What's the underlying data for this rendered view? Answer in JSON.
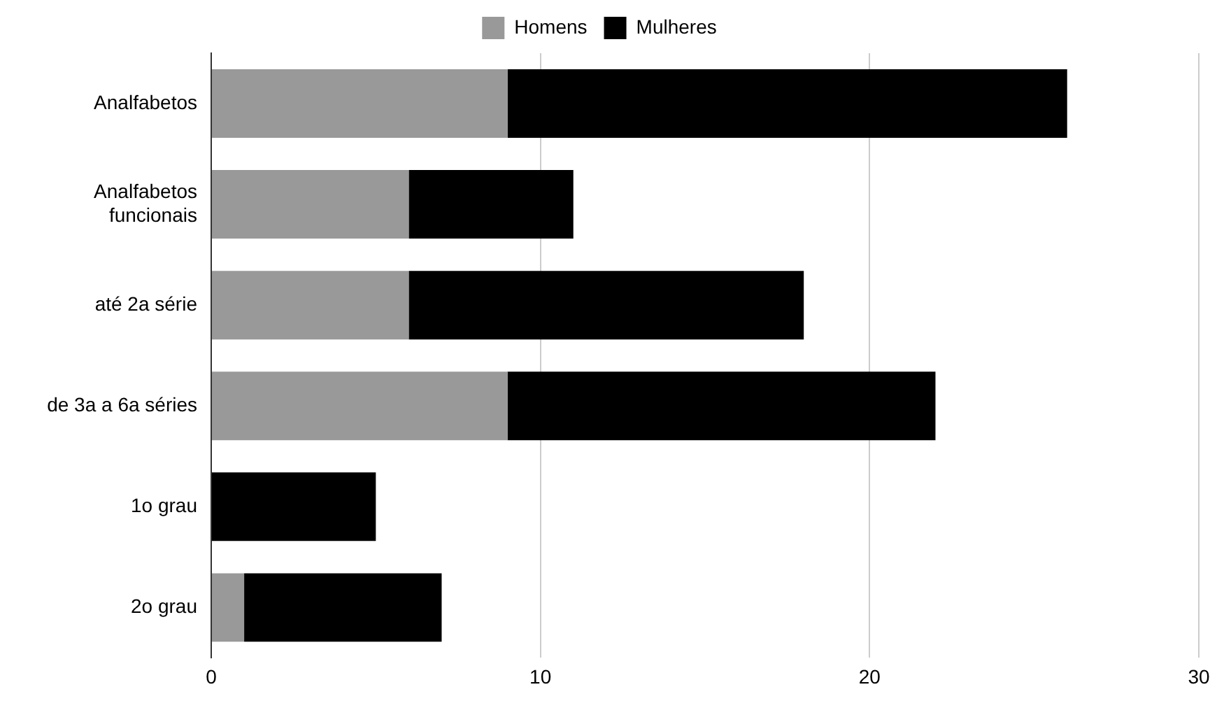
{
  "chart_data": {
    "type": "bar",
    "orientation": "horizontal",
    "stacked": true,
    "categories": [
      "Analfabetos",
      "Analfabetos funcionais",
      "até 2a série",
      "de 3a a 6a séries",
      "1o grau",
      "2o grau"
    ],
    "series": [
      {
        "name": "Homens",
        "color": "#999999",
        "values": [
          9,
          6,
          6,
          9,
          0,
          1
        ]
      },
      {
        "name": "Mulheres",
        "color": "#000000",
        "values": [
          17,
          5,
          12,
          13,
          5,
          6
        ]
      }
    ],
    "xlim": [
      0,
      30
    ],
    "xticks": [
      0,
      10,
      20,
      30
    ],
    "grid": "x",
    "legend": "top"
  }
}
